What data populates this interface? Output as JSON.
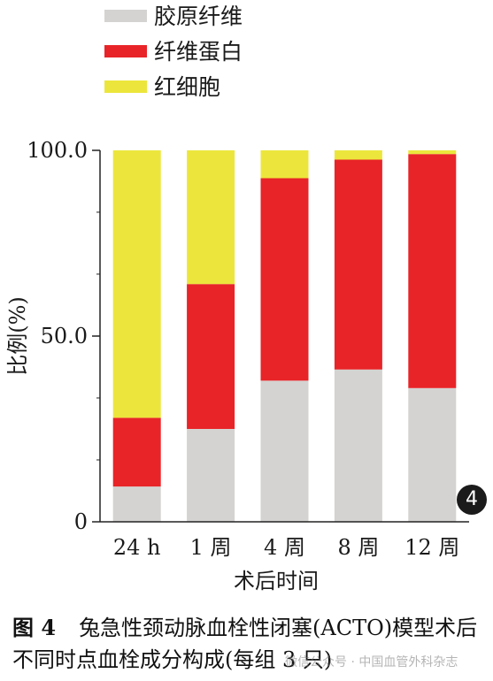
{
  "chart_data": {
    "type": "bar",
    "stacked": true,
    "categories": [
      "24 h",
      "1 周",
      "4 周",
      "8 周",
      "12 周"
    ],
    "series": [
      {
        "name": "胶原纤维",
        "color": "#d4d3d1",
        "values": [
          9.5,
          25,
          38,
          41,
          36
        ]
      },
      {
        "name": "纤维蛋白",
        "color": "#e82428",
        "values": [
          18.5,
          39,
          54.5,
          56.5,
          63
        ]
      },
      {
        "name": "红细胞",
        "color": "#ece63c",
        "values": [
          72,
          36,
          7.5,
          2.5,
          1
        ]
      }
    ],
    "xlabel": "术后时间",
    "ylabel": "比例(%)",
    "ylim": [
      0,
      100
    ],
    "yticks": [
      0,
      50,
      100
    ],
    "ytick_labels": [
      "0",
      "50.0",
      "100.0"
    ],
    "yminor_step": 16.67,
    "legend_position": "top-left",
    "grid": false
  },
  "caption": {
    "label": "图 4",
    "text": "兔急性颈动脉血栓性闭塞(ACTO)模型术后不同时点血栓成分构成(每组 3 只)"
  },
  "badge": "4",
  "watermark": "微信公众号 · 中国血管外科杂志"
}
